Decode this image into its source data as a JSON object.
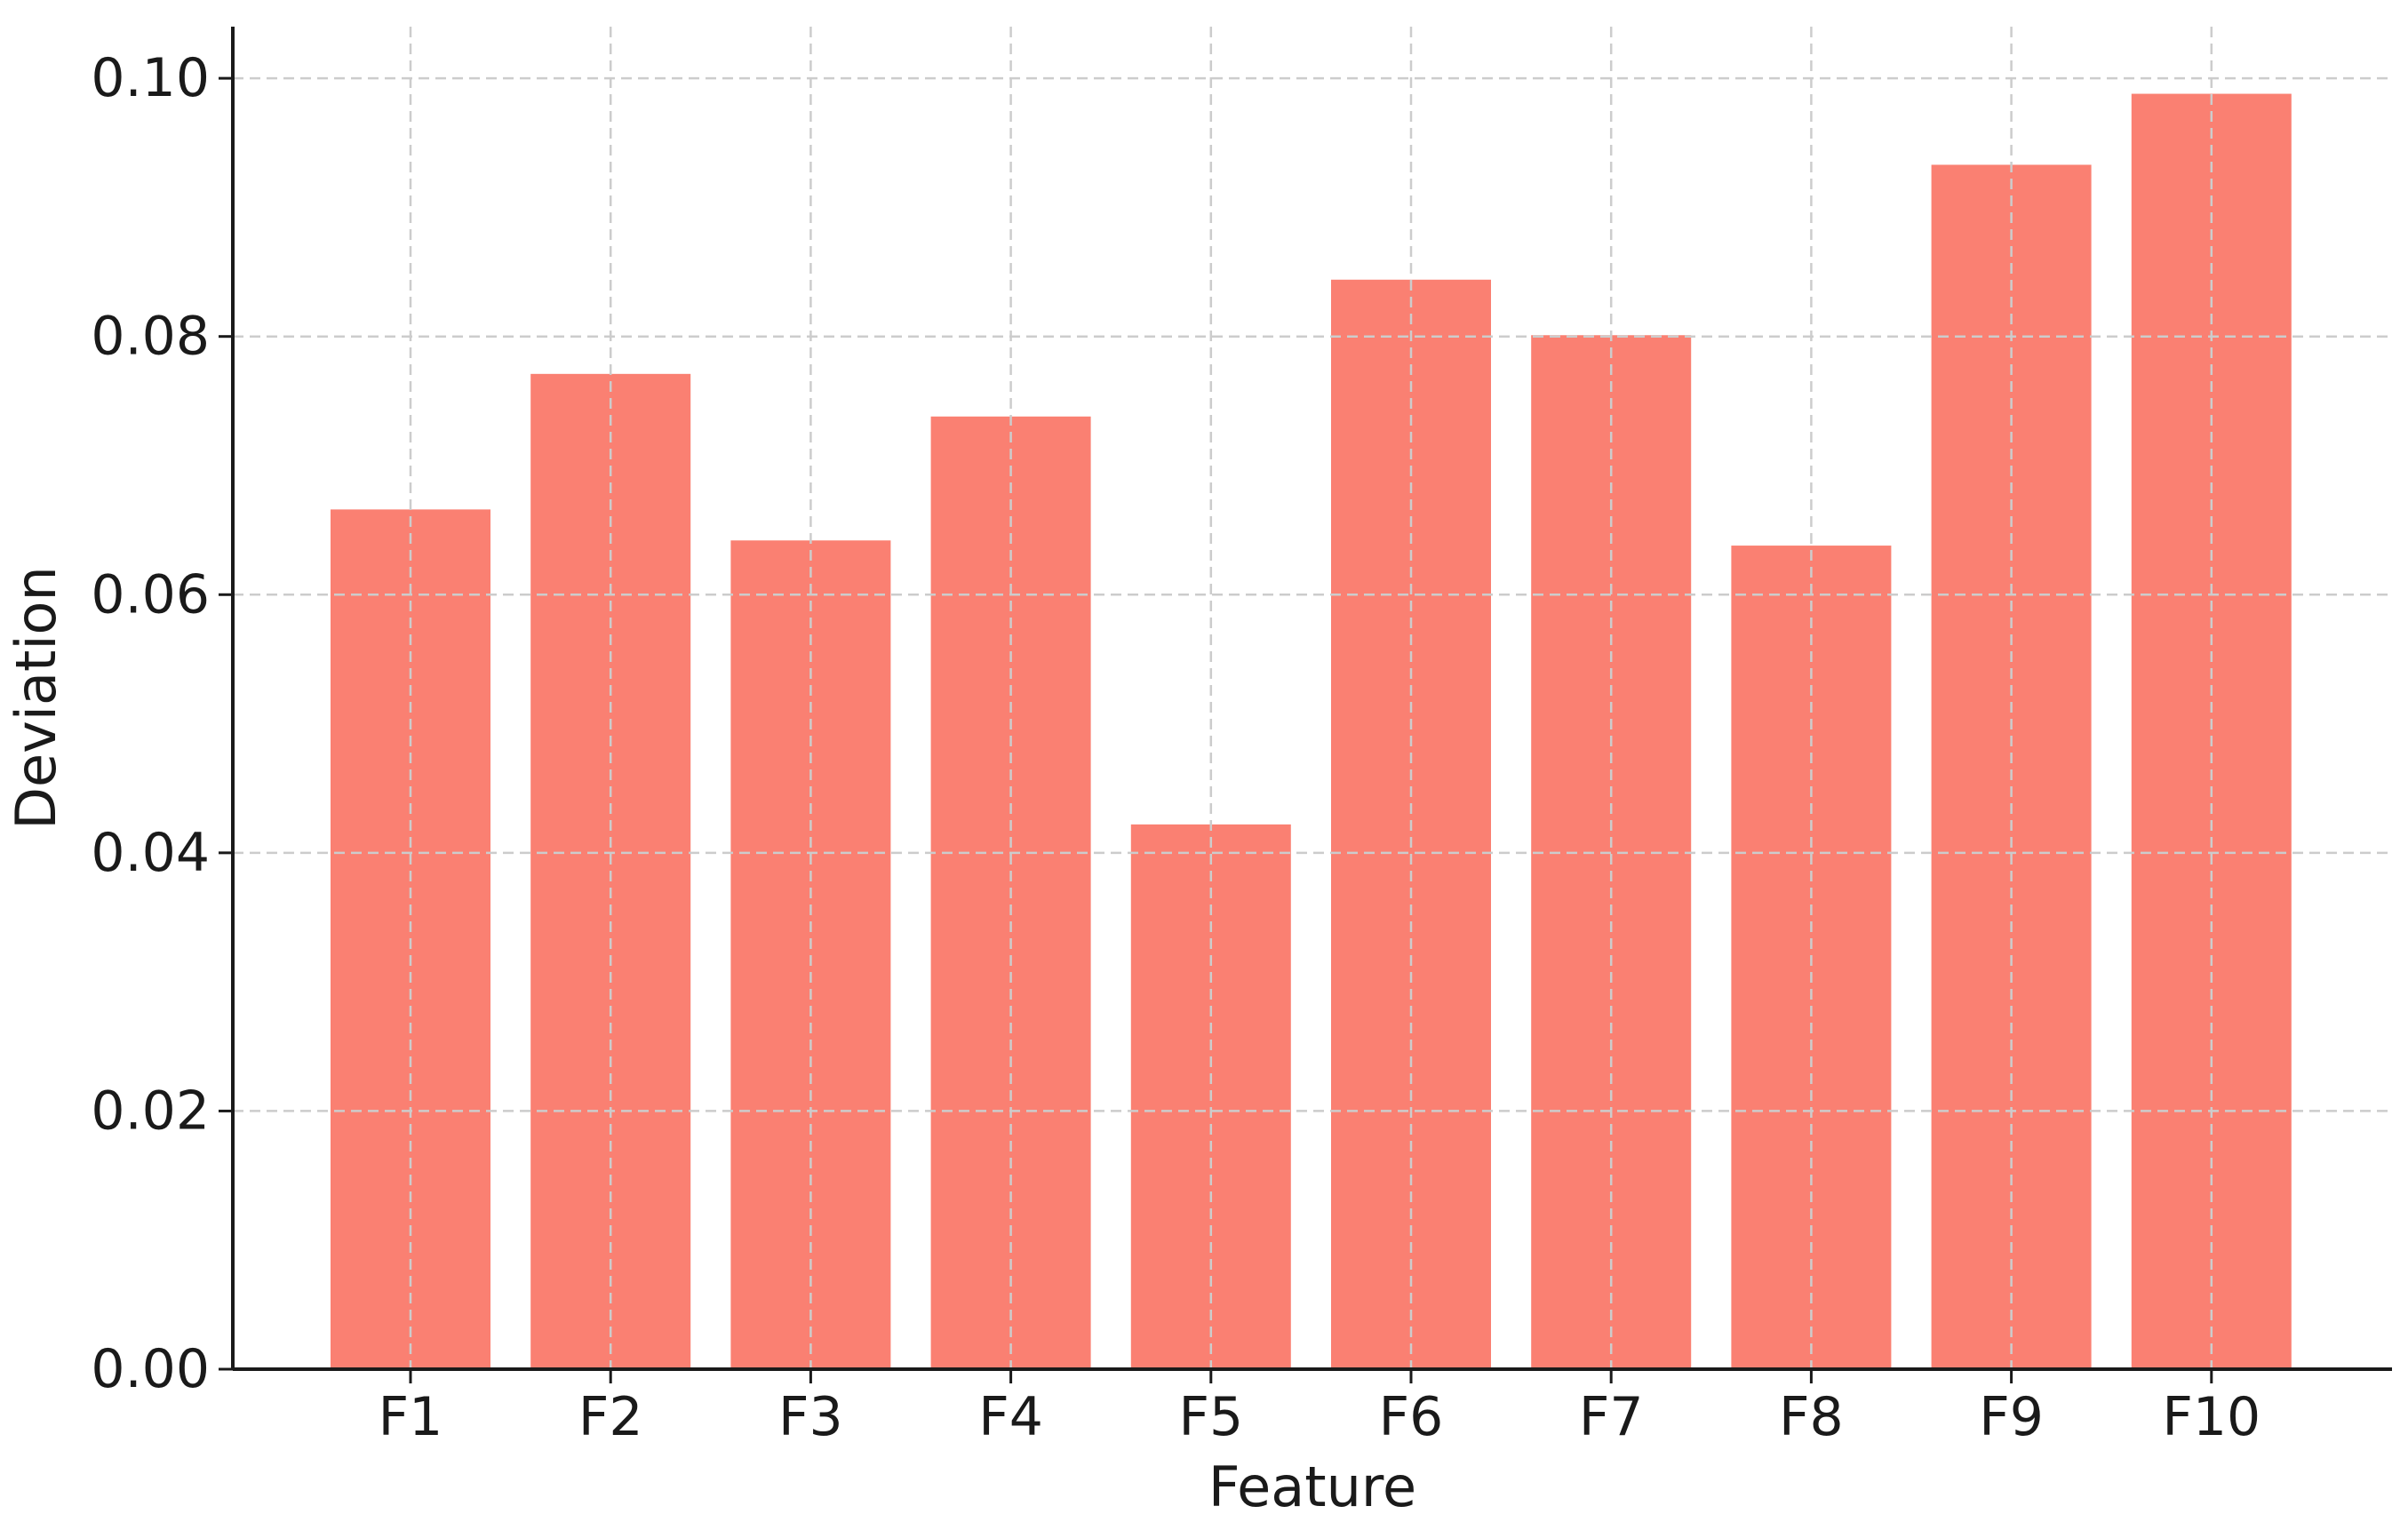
{
  "chart_data": {
    "type": "bar",
    "title": "",
    "xlabel": "Feature",
    "ylabel": "Deviation",
    "categories": [
      "F1",
      "F2",
      "F3",
      "F4",
      "F5",
      "F6",
      "F7",
      "F8",
      "F9",
      "F10"
    ],
    "values": [
      0.0666,
      0.0771,
      0.0642,
      0.0738,
      0.0422,
      0.0844,
      0.0801,
      0.0638,
      0.0933,
      0.0988
    ],
    "ylim": [
      0,
      0.104
    ],
    "yticks": [
      "0.00",
      "0.02",
      "0.04",
      "0.06",
      "0.08",
      "0.10"
    ],
    "grid": true,
    "legend": "none",
    "bar_color": "#FA8072",
    "grid_color": "#cccccc",
    "axis_color": "#1a1a1a"
  }
}
